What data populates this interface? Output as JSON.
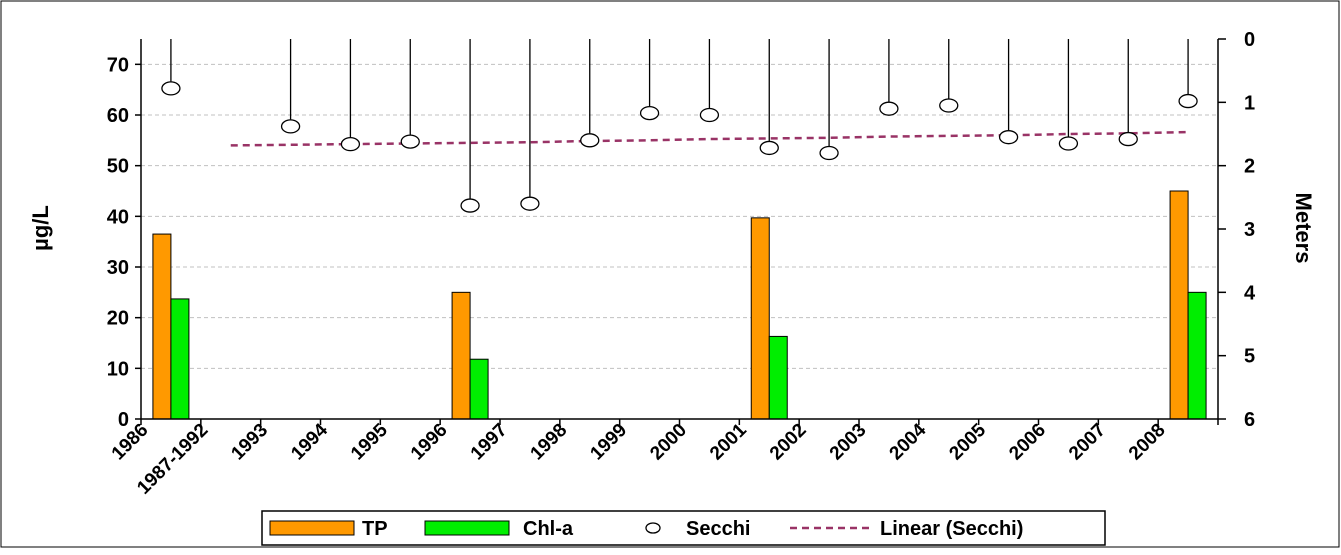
{
  "chart_data": {
    "type": "bar",
    "categories": [
      "1986",
      "1987-1992",
      "1993",
      "1994",
      "1995",
      "1996",
      "1997",
      "1998",
      "1999",
      "2000",
      "2001",
      "2002",
      "2003",
      "2004",
      "2005",
      "2006",
      "2007",
      "2008"
    ],
    "ylabel": "µg/L",
    "y2label": "Meters",
    "ylim": [
      0,
      75
    ],
    "yticks": [
      0,
      10,
      20,
      30,
      40,
      50,
      60,
      70
    ],
    "y2lim": [
      0,
      6
    ],
    "y2ticks": [
      0,
      1,
      2,
      3,
      4,
      5,
      6
    ],
    "y2_inverted": true,
    "grid": "horizontal dashed",
    "legend_position": "bottom",
    "series": [
      {
        "name": "TP",
        "kind": "bar",
        "axis": "left",
        "color": "#FF9900",
        "values": [
          36.5,
          null,
          null,
          null,
          null,
          25.0,
          null,
          null,
          null,
          null,
          39.7,
          null,
          null,
          null,
          null,
          null,
          null,
          45.0
        ]
      },
      {
        "name": "Chl-a",
        "kind": "bar",
        "axis": "left",
        "color": "#00EE00",
        "values": [
          23.7,
          null,
          null,
          null,
          null,
          11.8,
          null,
          null,
          null,
          null,
          16.3,
          null,
          null,
          null,
          null,
          null,
          null,
          25.0
        ]
      },
      {
        "name": "Secchi",
        "kind": "marker-drop",
        "axis": "right",
        "values": [
          0.78,
          null,
          1.38,
          1.66,
          1.62,
          2.63,
          2.6,
          1.6,
          1.17,
          1.2,
          1.72,
          1.8,
          1.1,
          1.05,
          1.55,
          1.65,
          1.58,
          0.98
        ]
      },
      {
        "name": "Linear (Secchi)",
        "kind": "trendline",
        "axis": "right",
        "color": "#993366",
        "values": [
          null,
          1.68,
          1.67,
          1.66,
          1.65,
          1.64,
          1.63,
          1.61,
          1.6,
          1.58,
          1.57,
          1.56,
          1.54,
          1.53,
          1.52,
          1.5,
          1.49,
          1.47
        ]
      }
    ],
    "legend": [
      {
        "label": "TP",
        "marker": "bar",
        "color": "#FF9900"
      },
      {
        "label": "Chl-a",
        "marker": "bar",
        "color": "#00EE00"
      },
      {
        "label": "Secchi",
        "marker": "circle",
        "color": "#ffffff"
      },
      {
        "label": "Linear (Secchi)",
        "marker": "dash",
        "color": "#993366"
      }
    ]
  }
}
